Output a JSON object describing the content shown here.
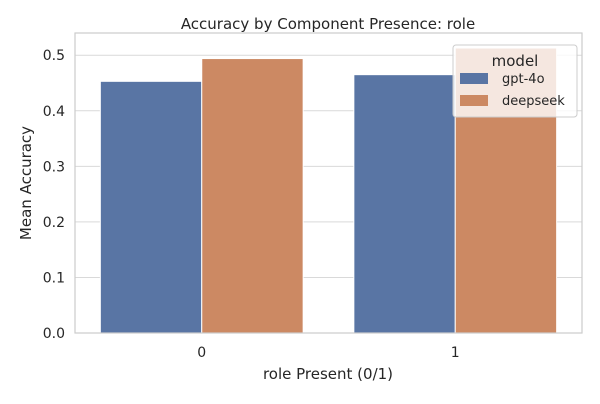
{
  "chart_data": {
    "type": "bar",
    "title": "Accuracy by Component Presence: role",
    "xlabel": "role Present (0/1)",
    "ylabel": "Mean Accuracy",
    "categories": [
      "0",
      "1"
    ],
    "series": [
      {
        "name": "gpt-4o",
        "values": [
          0.453,
          0.465
        ],
        "color": "#5975a4"
      },
      {
        "name": "deepseek",
        "values": [
          0.494,
          0.513
        ],
        "color": "#cc8963"
      }
    ],
    "ylim": [
      0,
      0.54
    ],
    "yticks": [
      "0.0",
      "0.1",
      "0.2",
      "0.3",
      "0.4",
      "0.5"
    ],
    "grid": "horizontal",
    "legend": {
      "title": "model",
      "position": "top-right"
    },
    "colors": {
      "grid": "#d9d9d9",
      "frame": "#cccccc",
      "background": "#ffffff"
    }
  }
}
